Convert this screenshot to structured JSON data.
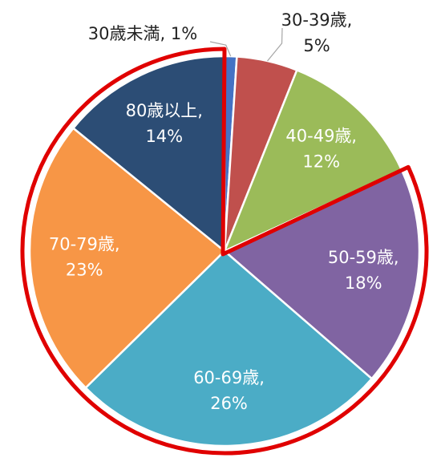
{
  "chart_data": {
    "type": "pie",
    "categories": [
      "30歳未満",
      "30-39歳",
      "40-49歳",
      "50-59歳",
      "60-69歳",
      "70-79歳",
      "80歳以上"
    ],
    "values": [
      1,
      5,
      12,
      18,
      26,
      23,
      14
    ],
    "labels": [
      [
        "30歳未満, 1%"
      ],
      [
        "30-39歳,",
        "5%"
      ],
      [
        "40-49歳,",
        "12%"
      ],
      [
        "50-59歳,",
        "18%"
      ],
      [
        "60-69歳,",
        "26%"
      ],
      [
        "70-79歳,",
        "23%"
      ],
      [
        "80歳以上,",
        "14%"
      ]
    ],
    "colors": [
      "#4472C4",
      "#C0504D",
      "#9BBB59",
      "#8064A2",
      "#4BACC6",
      "#F79646",
      "#2C4D75"
    ],
    "label_colors": [
      "#222222",
      "#222222",
      "#ffffff",
      "#ffffff",
      "#ffffff",
      "#ffffff",
      "#ffffff"
    ],
    "highlight": {
      "categories": [
        "50-59歳",
        "60-69歳",
        "70-79歳",
        "80歳以上"
      ],
      "outline_color": "#E00000"
    }
  }
}
